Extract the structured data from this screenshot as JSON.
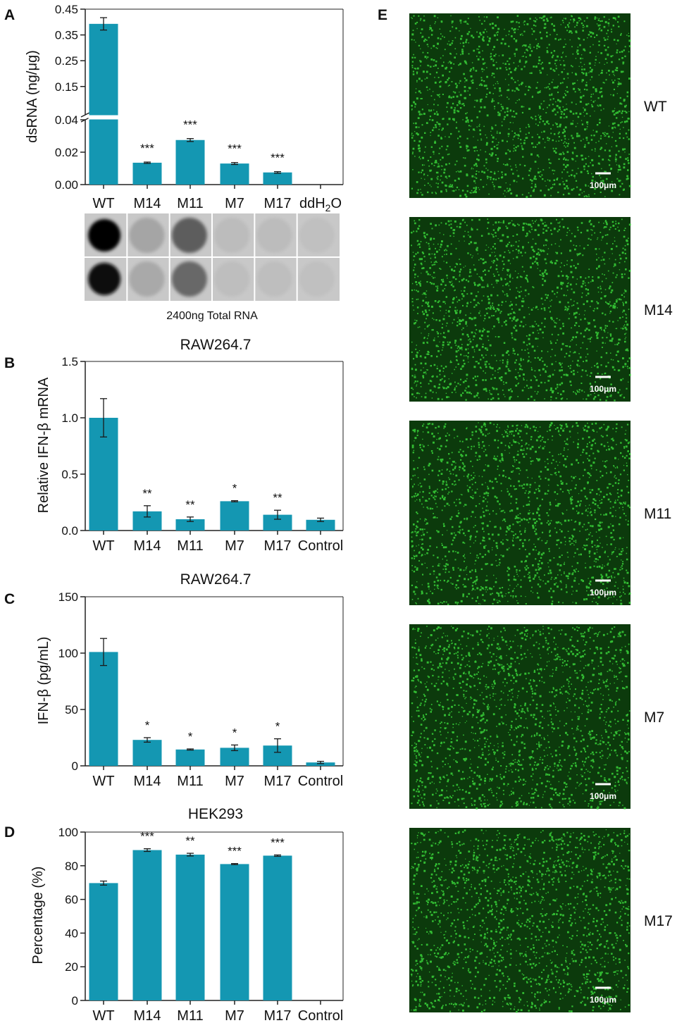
{
  "colors": {
    "bar": "#1497B2",
    "axis": "#222222",
    "blot_bg": "#c8c8c8",
    "micro_bg": "#0c3a0c",
    "micro_cell": "#39d239"
  },
  "panel_a": {
    "letter": "A",
    "ylabel": "dsRNA (ng/μg)",
    "caption": "2400ng Total RNA",
    "blot_intensities": [
      [
        1.0,
        0.18,
        0.55,
        0.06,
        0.06,
        0.04
      ],
      [
        0.95,
        0.16,
        0.5,
        0.05,
        0.05,
        0.04
      ]
    ]
  },
  "panel_b": {
    "letter": "B",
    "title": "RAW264.7",
    "ylabel": "Relative IFN-β mRNA"
  },
  "panel_c": {
    "letter": "C",
    "title": "RAW264.7",
    "ylabel": "IFN-β (pg/mL)"
  },
  "panel_d": {
    "letter": "D",
    "title": "HEK293",
    "ylabel": "Percentage (%)"
  },
  "panel_e": {
    "letter": "E",
    "images": [
      {
        "label": "WT",
        "scale": "100μm"
      },
      {
        "label": "M14",
        "scale": "100μm"
      },
      {
        "label": "M11",
        "scale": "100μm"
      },
      {
        "label": "M7",
        "scale": "100μm"
      },
      {
        "label": "M17",
        "scale": "100μm"
      }
    ]
  },
  "chart_data": [
    {
      "type": "bar",
      "panel": "A",
      "title": "",
      "ylabel": "dsRNA (ng/μg)",
      "xlabel": "",
      "categories": [
        "WT",
        "M14",
        "M11",
        "M7",
        "M17",
        "ddH2O"
      ],
      "values": [
        0.393,
        0.0135,
        0.0275,
        0.013,
        0.0075,
        0
      ],
      "errors": [
        0.024,
        0.0004,
        0.0009,
        0.0006,
        0.0005,
        0
      ],
      "significance": [
        "",
        "***",
        "***",
        "***",
        "***",
        ""
      ],
      "y_axis_break": true,
      "ylim_lower": [
        0,
        0.04
      ],
      "ylim_upper": [
        0.04,
        0.45
      ],
      "yticks_lower": [
        "0.00",
        "0.02",
        "0.04"
      ],
      "yticks_upper": [
        "0.15",
        "0.25",
        "0.35",
        "0.45"
      ],
      "yticks_upper_values": [
        0.15,
        0.25,
        0.35,
        0.45
      ],
      "grid": false,
      "legend": "none"
    },
    {
      "type": "bar",
      "panel": "B",
      "title": "RAW264.7",
      "ylabel": "Relative IFN-β mRNA",
      "xlabel": "",
      "categories": [
        "WT",
        "M14",
        "M11",
        "M7",
        "M17",
        "Control"
      ],
      "values": [
        1.0,
        0.17,
        0.1,
        0.26,
        0.14,
        0.095
      ],
      "errors": [
        0.17,
        0.05,
        0.02,
        0.005,
        0.04,
        0.015
      ],
      "significance": [
        "",
        "**",
        "**",
        "*",
        "**",
        ""
      ],
      "ylim": [
        0,
        1.5
      ],
      "yticks": [
        "0.0",
        "0.5",
        "1.0",
        "1.5"
      ],
      "ytick_values": [
        0,
        0.5,
        1.0,
        1.5
      ],
      "grid": false,
      "legend": "none"
    },
    {
      "type": "bar",
      "panel": "C",
      "title": "RAW264.7",
      "ylabel": "IFN-β (pg/mL)",
      "xlabel": "",
      "categories": [
        "WT",
        "M14",
        "M11",
        "M7",
        "M17",
        "Control"
      ],
      "values": [
        101,
        23,
        14.5,
        16,
        18,
        3
      ],
      "errors": [
        12,
        2,
        0.5,
        2.5,
        6,
        1
      ],
      "significance": [
        "",
        "*",
        "*",
        "*",
        "*",
        ""
      ],
      "ylim": [
        0,
        150
      ],
      "yticks": [
        "0",
        "50",
        "100",
        "150"
      ],
      "ytick_values": [
        0,
        50,
        100,
        150
      ],
      "grid": false,
      "legend": "none"
    },
    {
      "type": "bar",
      "panel": "D",
      "title": "HEK293",
      "ylabel": "Percentage (%)",
      "xlabel": "",
      "categories": [
        "WT",
        "M14",
        "M11",
        "M7",
        "M17",
        "Control"
      ],
      "values": [
        69.7,
        89.3,
        86.6,
        81.0,
        86.0,
        0
      ],
      "errors": [
        1.2,
        0.8,
        0.8,
        0.3,
        0.4,
        0
      ],
      "significance": [
        "",
        "***",
        "**",
        "***",
        "***",
        ""
      ],
      "ylim": [
        0,
        100
      ],
      "yticks": [
        "0",
        "20",
        "40",
        "60",
        "80",
        "100"
      ],
      "ytick_values": [
        0,
        20,
        40,
        60,
        80,
        100
      ],
      "grid": false,
      "legend": "none"
    }
  ]
}
